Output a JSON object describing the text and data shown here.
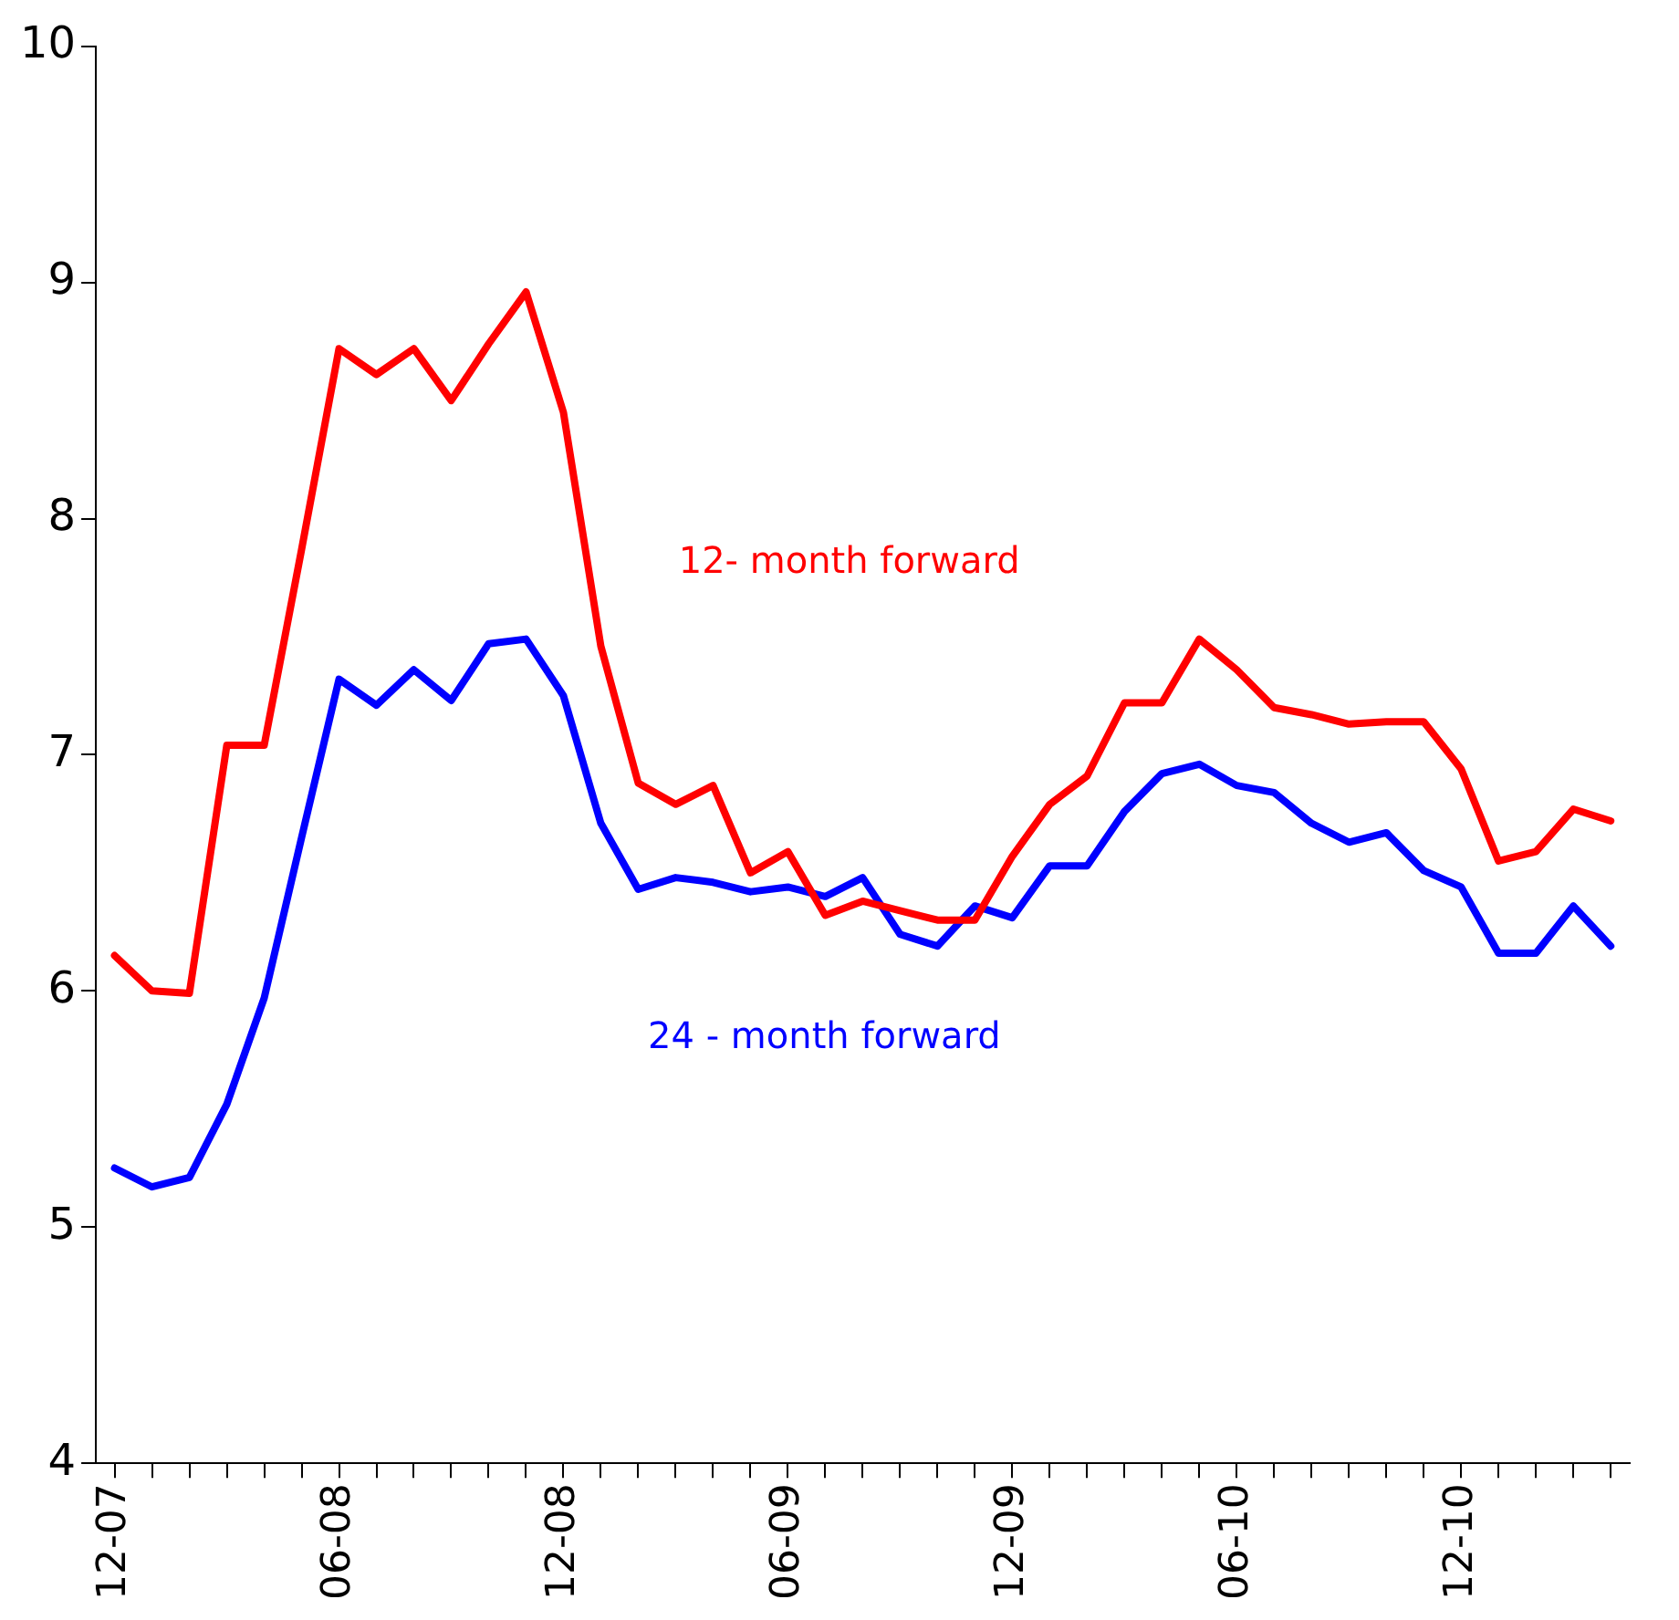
{
  "chart_data": {
    "type": "line",
    "categories": [
      "12-07",
      null,
      null,
      null,
      null,
      null,
      "06-08",
      null,
      null,
      null,
      null,
      null,
      "12-08",
      null,
      null,
      null,
      null,
      null,
      "06-09",
      null,
      null,
      null,
      null,
      null,
      "12-09",
      null,
      null,
      null,
      null,
      null,
      "06-10",
      null,
      null,
      null,
      null,
      null,
      "12-10",
      null,
      null,
      null,
      null
    ],
    "series": [
      {
        "name": "12- month forward",
        "color": "#ff0000",
        "values": [
          6.15,
          6.0,
          5.99,
          7.04,
          7.04,
          7.87,
          8.72,
          8.61,
          8.72,
          8.5,
          8.74,
          8.96,
          8.45,
          7.46,
          6.88,
          6.79,
          6.87,
          6.5,
          6.59,
          6.32,
          6.38,
          6.34,
          6.3,
          6.3,
          6.57,
          6.79,
          6.91,
          7.22,
          7.22,
          7.49,
          7.36,
          7.2,
          7.17,
          7.13,
          7.14,
          7.14,
          6.94,
          6.55,
          6.59,
          6.77,
          6.72
        ]
      },
      {
        "name": "24 - month forward",
        "color": "#0000ff",
        "values": [
          5.25,
          5.17,
          5.21,
          5.52,
          5.97,
          6.65,
          7.32,
          7.21,
          7.36,
          7.23,
          7.47,
          7.49,
          7.25,
          6.71,
          6.43,
          6.48,
          6.46,
          6.42,
          6.44,
          6.4,
          6.48,
          6.24,
          6.19,
          6.36,
          6.31,
          6.53,
          6.53,
          6.76,
          6.92,
          6.96,
          6.87,
          6.84,
          6.71,
          6.63,
          6.67,
          6.51,
          6.44,
          6.16,
          6.16,
          6.36,
          6.19
        ]
      }
    ],
    "ylim": [
      4,
      10
    ],
    "yticks": [
      4,
      5,
      6,
      7,
      8,
      9,
      10
    ],
    "grid": false,
    "legend": false,
    "marker": "none",
    "line_style": "solid"
  }
}
